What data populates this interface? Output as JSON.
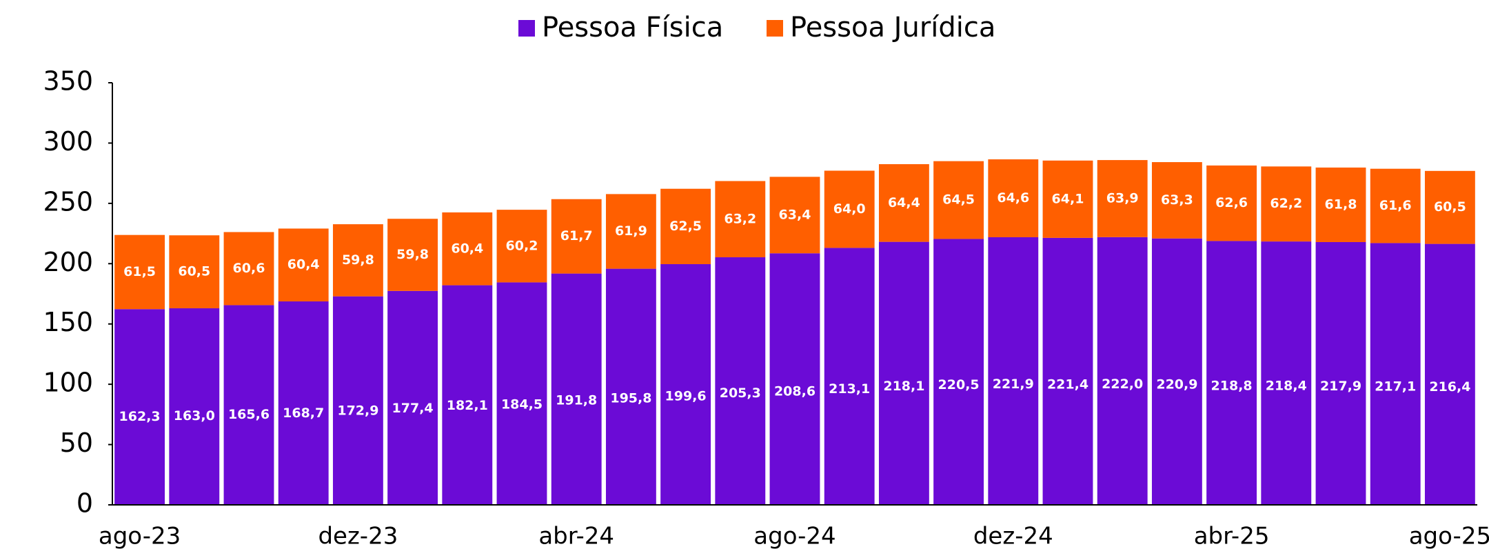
{
  "chart_data": {
    "type": "stacked_bar",
    "categories": [
      "ago-23",
      null,
      null,
      null,
      "dez-23",
      null,
      null,
      null,
      "abr-24",
      null,
      null,
      null,
      "ago-24",
      null,
      null,
      null,
      "dez-24",
      null,
      null,
      null,
      "abr-25",
      null,
      null,
      null,
      "ago-25"
    ],
    "series": [
      {
        "name": "Pessoa Física",
        "color": "#6b0bd6",
        "values": [
          162.3,
          163.0,
          165.6,
          168.7,
          172.9,
          177.4,
          182.1,
          184.5,
          191.8,
          195.8,
          199.6,
          205.3,
          208.6,
          213.1,
          218.1,
          220.5,
          221.9,
          221.4,
          222.0,
          220.9,
          218.8,
          218.4,
          217.9,
          217.1,
          216.4
        ],
        "value_labels": [
          "162,3",
          "163,0",
          "165,6",
          "168,7",
          "172,9",
          "177,4",
          "182,1",
          "184,5",
          "191,8",
          "195,8",
          "199,6",
          "205,3",
          "208,6",
          "213,1",
          "218,1",
          "220,5",
          "221,9",
          "221,4",
          "222,0",
          "220,9",
          "218,8",
          "218,4",
          "217,9",
          "217,1",
          "216,4"
        ]
      },
      {
        "name": "Pessoa Jurídica",
        "color": "#ff5f00",
        "values": [
          61.5,
          60.5,
          60.6,
          60.4,
          59.8,
          59.8,
          60.4,
          60.2,
          61.7,
          61.9,
          62.5,
          63.2,
          63.4,
          64.0,
          64.4,
          64.5,
          64.6,
          64.1,
          63.9,
          63.3,
          62.6,
          62.2,
          61.8,
          61.6,
          60.5
        ],
        "value_labels": [
          "61,5",
          "60,5",
          "60,6",
          "60,4",
          "59,8",
          "59,8",
          "60,4",
          "60,2",
          "61,7",
          "61,9",
          "62,5",
          "63,2",
          "63,4",
          "64,0",
          "64,4",
          "64,5",
          "64,6",
          "64,1",
          "63,9",
          "63,3",
          "62,6",
          "62,2",
          "61,8",
          "61,6",
          "60,5"
        ]
      }
    ],
    "ylim": [
      0,
      350
    ],
    "yticks": [
      0,
      50,
      100,
      150,
      200,
      250,
      300,
      350
    ],
    "legend": "top"
  }
}
